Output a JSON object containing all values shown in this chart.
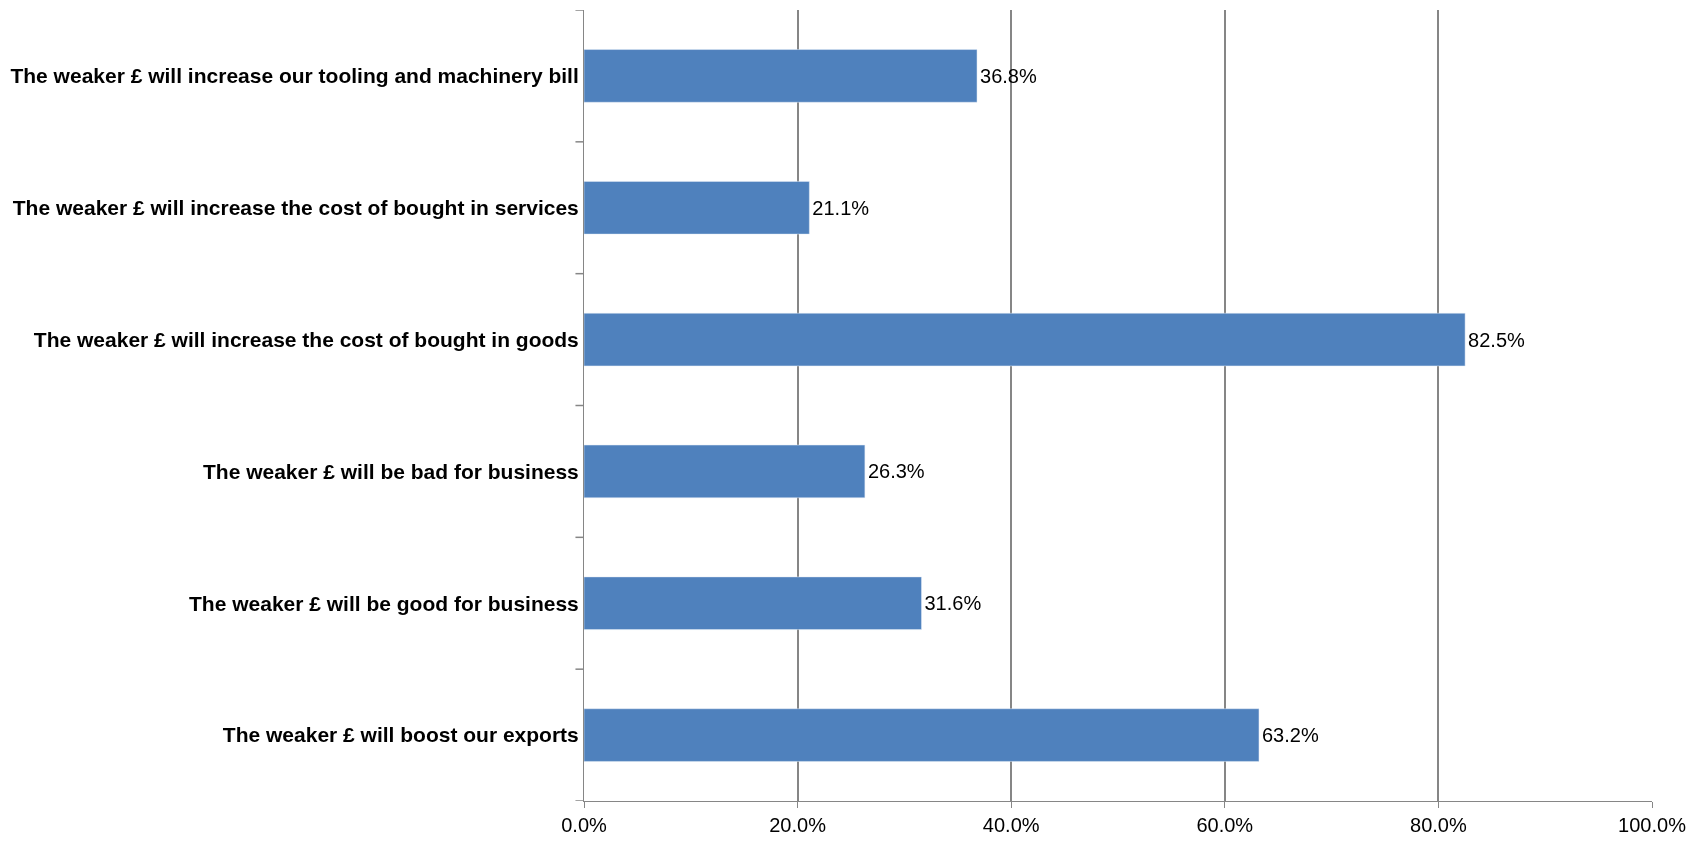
{
  "chart_data": {
    "type": "bar",
    "orientation": "horizontal",
    "categories": [
      "The weaker £ will increase our tooling and machinery bill",
      "The weaker £ will increase the cost of bought in services",
      "The weaker £ will increase the cost of bought in goods",
      "The weaker £ will be bad for business",
      "The weaker £ will be good for business",
      "The weaker £ will boost our exports"
    ],
    "values": [
      36.8,
      21.1,
      82.5,
      26.3,
      31.6,
      63.2
    ],
    "value_labels": [
      "36.8%",
      "21.1%",
      "82.5%",
      "26.3%",
      "31.6%",
      "63.2%"
    ],
    "color": "#4f81bd",
    "xlim": [
      0,
      100
    ],
    "xticks": [
      {
        "value": 0,
        "label": "0.0%"
      },
      {
        "value": 20,
        "label": "20.0%"
      },
      {
        "value": 40,
        "label": "40.0%"
      },
      {
        "value": 60,
        "label": "60.0%"
      },
      {
        "value": 80,
        "label": "80.0%"
      },
      {
        "value": 100,
        "label": "100.0%"
      }
    ],
    "grid": "x",
    "legend": false
  }
}
